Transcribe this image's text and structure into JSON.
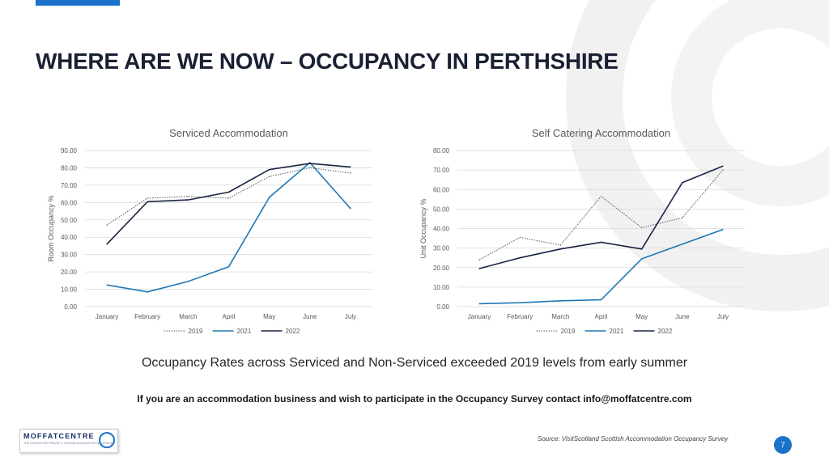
{
  "slide": {
    "title": "WHERE ARE WE NOW – OCCUPANCY IN PERTHSHIRE",
    "headline": "Occupancy Rates across Serviced and Non-Serviced exceeded 2019 levels from early summer",
    "cta": "If you are an accommodation business and wish to participate in the Occupancy Survey contact info@moffatcentre.com",
    "source": "Source: VisitScotland Scottish Accommodation Occupancy Survey",
    "page_number": "7",
    "logo_text": "MOFFATCENTRE",
    "logo_tagline": "THE CENTRE FOR TRAVEL & TOURISM BUSINESS DEVELOPMENT"
  },
  "colors": {
    "accent": "#1a73c8",
    "series_2019": "#595959",
    "series_2021": "#1f78b4",
    "series_2022": "#1a2445"
  },
  "chart_data": [
    {
      "type": "line",
      "title": "Serviced Accommodation",
      "xlabel": "",
      "ylabel": "Room Occupancy %",
      "categories": [
        "January",
        "February",
        "March",
        "April",
        "May",
        "June",
        "July"
      ],
      "ylim": [
        0,
        90
      ],
      "yticks": [
        "0.00",
        "10.00",
        "20.00",
        "30.00",
        "40.00",
        "50.00",
        "60.00",
        "70.00",
        "80.00",
        "90.00"
      ],
      "grid": true,
      "legend_position": "bottom",
      "series": [
        {
          "name": "2019",
          "style": "dotted",
          "values": [
            47,
            62.5,
            63.5,
            62.5,
            75,
            80,
            77
          ]
        },
        {
          "name": "2021",
          "style": "solid",
          "values": [
            12.5,
            8.5,
            14.5,
            23,
            63,
            83,
            56.5
          ]
        },
        {
          "name": "2022",
          "style": "solid-dark",
          "values": [
            36,
            60.5,
            61.5,
            66,
            79,
            82.5,
            80.5
          ]
        }
      ]
    },
    {
      "type": "line",
      "title": "Self Catering Accommodation",
      "xlabel": "",
      "ylabel": "Unit Occupancy %",
      "categories": [
        "January",
        "February",
        "March",
        "April",
        "May",
        "June",
        "July"
      ],
      "ylim": [
        0,
        80
      ],
      "yticks": [
        "0.00",
        "10.00",
        "20.00",
        "30.00",
        "40.00",
        "50.00",
        "60.00",
        "70.00",
        "80.00"
      ],
      "grid": true,
      "legend_position": "bottom",
      "series": [
        {
          "name": "2019",
          "style": "dotted",
          "values": [
            24,
            35.5,
            31.5,
            56.5,
            40.5,
            45.5,
            70
          ]
        },
        {
          "name": "2021",
          "style": "solid",
          "values": [
            1.5,
            2,
            3,
            3.5,
            24.5,
            32,
            39.5
          ]
        },
        {
          "name": "2022",
          "style": "solid-dark",
          "values": [
            19.5,
            25,
            29.5,
            33,
            29.5,
            63.5,
            72
          ]
        }
      ]
    }
  ]
}
